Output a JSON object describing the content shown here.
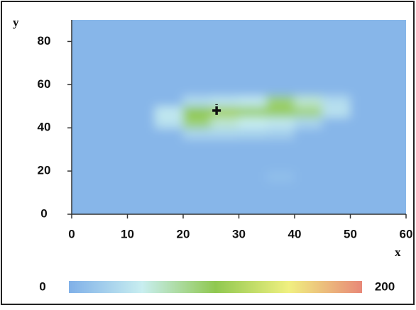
{
  "chart_data": {
    "type": "heatmap",
    "x_label": "x",
    "y_label": "y",
    "x": [
      2.5,
      7.5,
      12.5,
      17.5,
      22.5,
      27.5,
      32.5,
      37.5,
      42.5,
      47.5,
      52.5,
      57.5
    ],
    "y": [
      2.5,
      7.5,
      12.5,
      17.5,
      22.5,
      27.5,
      32.5,
      37.5,
      42.5,
      47.5,
      52.5,
      57.5,
      62.5,
      67.5,
      72.5,
      77.5,
      82.5,
      87.5
    ],
    "z": [
      [
        5,
        5,
        5,
        5,
        5,
        5,
        5,
        5,
        5,
        5,
        5,
        5
      ],
      [
        5,
        5,
        5,
        5,
        5,
        5,
        5,
        5,
        5,
        5,
        5,
        5
      ],
      [
        5,
        5,
        5,
        5,
        5,
        5,
        5,
        5,
        5,
        5,
        5,
        5
      ],
      [
        5,
        5,
        5,
        5,
        5,
        5,
        5,
        12,
        5,
        5,
        5,
        5
      ],
      [
        5,
        5,
        5,
        5,
        5,
        5,
        5,
        5,
        5,
        5,
        5,
        5
      ],
      [
        5,
        5,
        5,
        5,
        5,
        5,
        5,
        5,
        5,
        5,
        5,
        5
      ],
      [
        5,
        5,
        5,
        5,
        5,
        5,
        5,
        5,
        5,
        5,
        5,
        5
      ],
      [
        5,
        5,
        5,
        5,
        30,
        30,
        28,
        25,
        5,
        5,
        5,
        5
      ],
      [
        5,
        5,
        5,
        40,
        90,
        60,
        50,
        45,
        30,
        5,
        5,
        5
      ],
      [
        5,
        5,
        5,
        45,
        100,
        110,
        90,
        95,
        85,
        40,
        5,
        5
      ],
      [
        5,
        5,
        5,
        5,
        35,
        40,
        45,
        90,
        60,
        35,
        5,
        5
      ],
      [
        5,
        5,
        5,
        5,
        5,
        5,
        5,
        5,
        5,
        5,
        5,
        5
      ],
      [
        5,
        5,
        5,
        5,
        5,
        5,
        5,
        5,
        5,
        5,
        5,
        5
      ],
      [
        5,
        5,
        5,
        5,
        5,
        5,
        5,
        5,
        5,
        5,
        5,
        5
      ],
      [
        5,
        5,
        5,
        5,
        5,
        5,
        5,
        5,
        5,
        5,
        5,
        5
      ],
      [
        5,
        5,
        5,
        5,
        5,
        5,
        5,
        5,
        5,
        5,
        5,
        5
      ],
      [
        5,
        5,
        5,
        5,
        5,
        5,
        5,
        5,
        5,
        5,
        5,
        5
      ],
      [
        5,
        5,
        5,
        5,
        5,
        5,
        5,
        5,
        5,
        5,
        5,
        5
      ]
    ],
    "marker": {
      "x": 26,
      "y": 48
    },
    "xlim": [
      0,
      60
    ],
    "xticks": [
      0,
      10,
      20,
      30,
      40,
      50,
      60
    ],
    "ylim": [
      0,
      90
    ],
    "yticks": [
      0,
      20,
      40,
      60,
      80
    ],
    "colorscale": [
      [
        0,
        "#80b0e8"
      ],
      [
        50,
        "#c8eef0"
      ],
      [
        100,
        "#90c850"
      ],
      [
        150,
        "#f0f080"
      ],
      [
        200,
        "#e88878"
      ]
    ],
    "colorbar": {
      "range": [
        0,
        200
      ]
    }
  }
}
